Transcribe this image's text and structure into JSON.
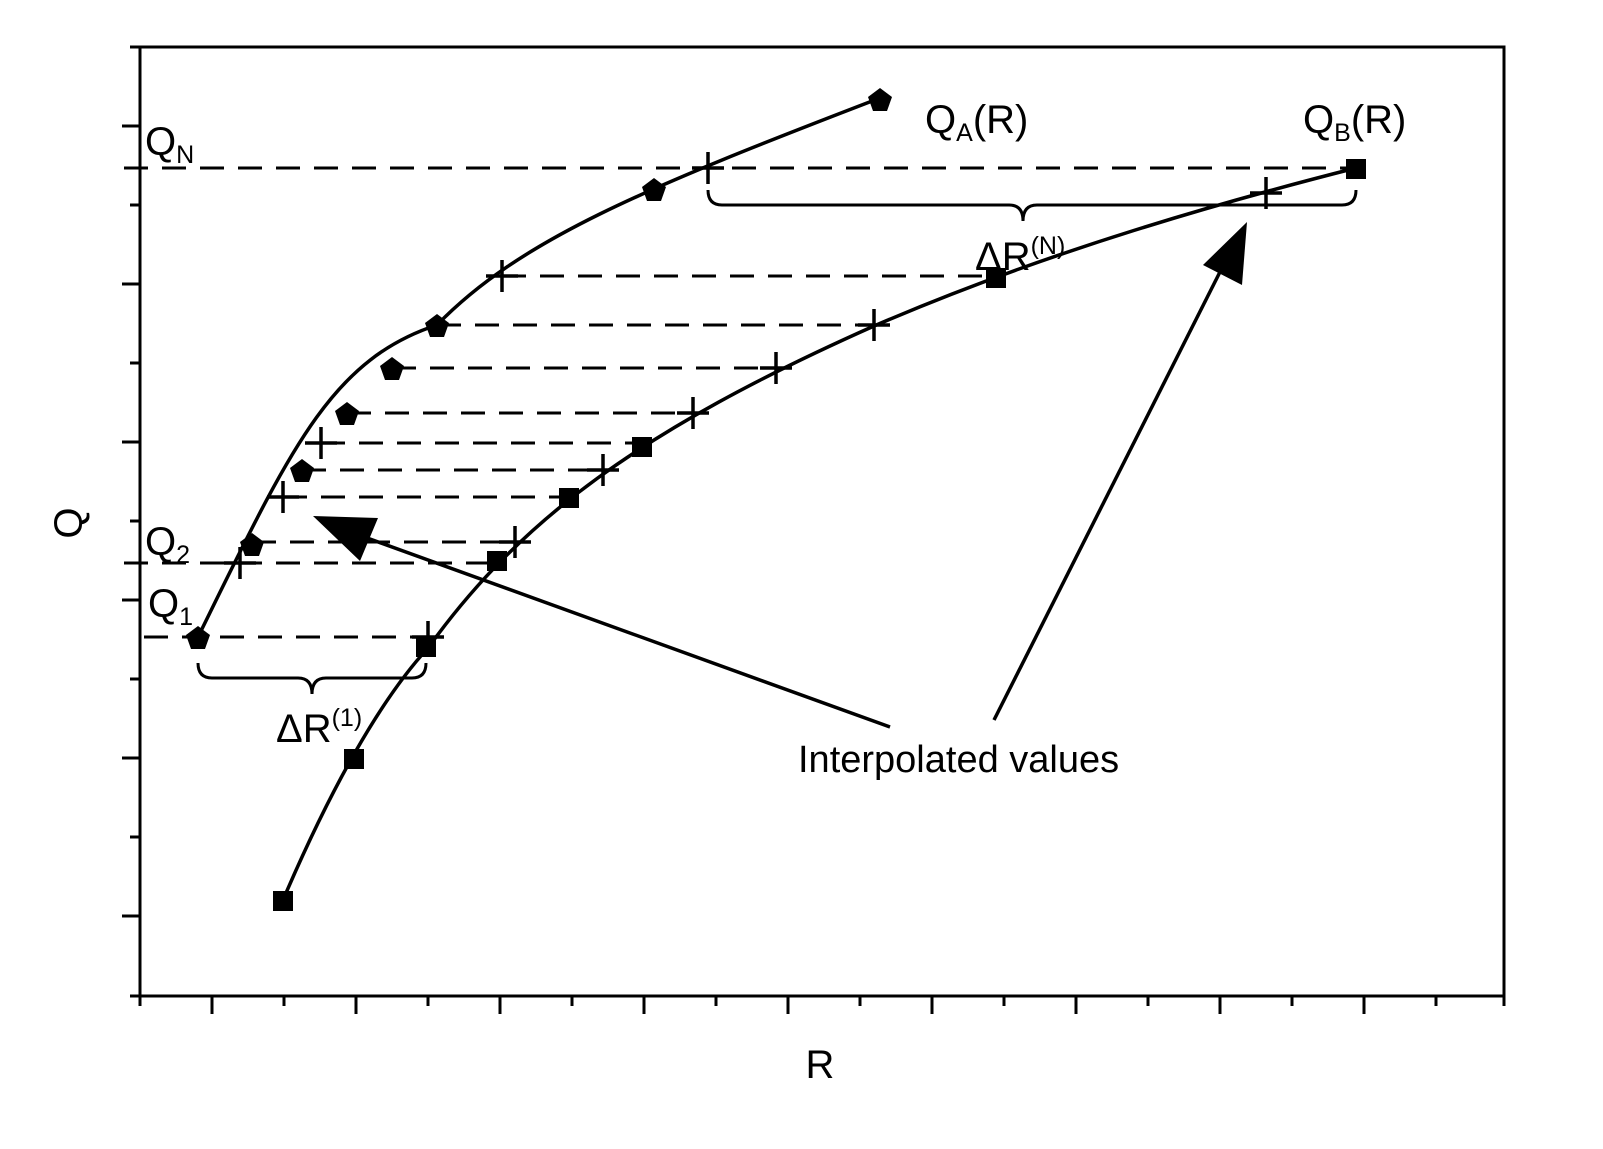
{
  "axes": {
    "x_title": "R",
    "y_title": "Q"
  },
  "curves": {
    "a": {
      "main": "Q",
      "sub": "A",
      "tail": "(R)"
    },
    "b": {
      "main": "Q",
      "sub": "B",
      "tail": "(R)"
    }
  },
  "levels": {
    "q1": {
      "main": "Q",
      "sub": "1"
    },
    "q2": {
      "main": "Q",
      "sub": "2"
    },
    "qn": {
      "main": "Q",
      "sub": "N"
    }
  },
  "deltas": {
    "d1": {
      "main": "ΔR",
      "sup": "(1)"
    },
    "dn": {
      "main": "ΔR",
      "sup": "(N)"
    }
  },
  "annotation": {
    "text": "Interpolated values"
  },
  "colors": {
    "ink": "#000000",
    "background": "#ffffff"
  },
  "markers": {
    "curve_a": "pentagon",
    "curve_b": "square",
    "interpolated": "plus"
  }
}
